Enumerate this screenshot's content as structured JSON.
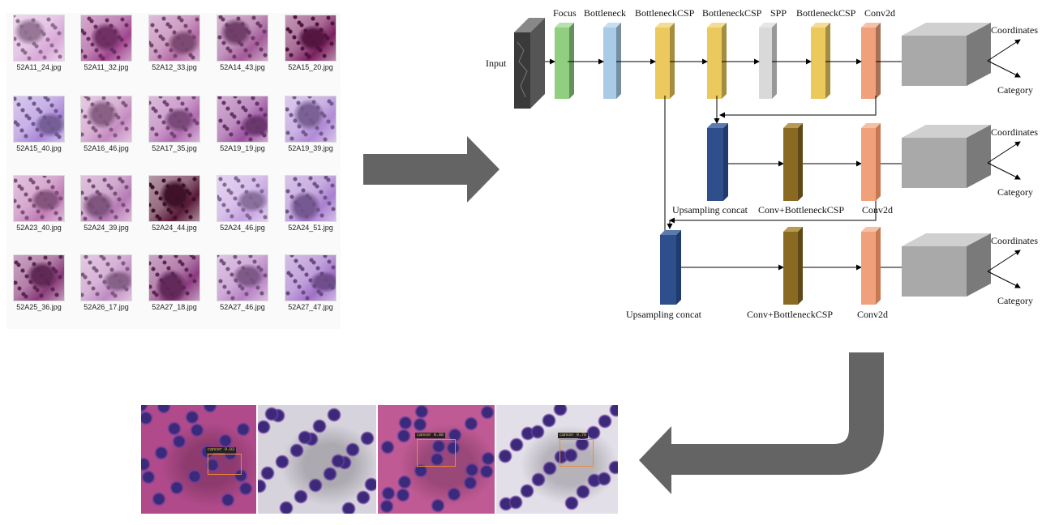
{
  "dataset": {
    "thumbnails": [
      {
        "file": "52A11_24.jpg",
        "shade": "#d9a8d8"
      },
      {
        "file": "52A11_32.jpg",
        "shade": "#a0448f"
      },
      {
        "file": "52A12_33.jpg",
        "shade": "#b36aa5"
      },
      {
        "file": "52A14_43.jpg",
        "shade": "#a35a99"
      },
      {
        "file": "52A15_20.jpg",
        "shade": "#7a1f5e"
      },
      {
        "file": "52A15_40.jpg",
        "shade": "#a986d8"
      },
      {
        "file": "52A16_46.jpg",
        "shade": "#c58ac0"
      },
      {
        "file": "52A17_35.jpg",
        "shade": "#b06ab0"
      },
      {
        "file": "52A19_19.jpg",
        "shade": "#9a4f9e"
      },
      {
        "file": "52A19_39.jpg",
        "shade": "#b08ad6"
      },
      {
        "file": "52A23_40.jpg",
        "shade": "#c07ab5"
      },
      {
        "file": "52A24_39.jpg",
        "shade": "#b77ab5"
      },
      {
        "file": "52A24_44.jpg",
        "shade": "#5a1a3a"
      },
      {
        "file": "52A24_46.jpg",
        "shade": "#c4a0e0"
      },
      {
        "file": "52A24_51.jpg",
        "shade": "#a97fd0"
      },
      {
        "file": "52A25_36.jpg",
        "shade": "#8a3a7a"
      },
      {
        "file": "52A26_17.jpg",
        "shade": "#c08ac2"
      },
      {
        "file": "52A27_18.jpg",
        "shade": "#8c3a80"
      },
      {
        "file": "52A27_46.jpg",
        "shade": "#b680c4"
      },
      {
        "file": "52A27_47.jpg",
        "shade": "#a070c8"
      }
    ]
  },
  "network": {
    "input_label": "Input",
    "backbone": [
      {
        "label": "Focus",
        "color": "#8fcf7f"
      },
      {
        "label": "Bottleneck",
        "color": "#a9cbe8"
      },
      {
        "label": "BottleneckCSP",
        "color": "#ecc95c"
      },
      {
        "label": "BottleneckCSP",
        "color": "#ecc95c"
      },
      {
        "label": "SPP",
        "color": "#d9d9d9"
      },
      {
        "label": "BottleneckCSP",
        "color": "#ecc95c"
      },
      {
        "label": "Conv2d",
        "color": "#f0a07a"
      }
    ],
    "branch2": {
      "up_label": "Upsampling concat",
      "mid_label": "Conv+BottleneckCSP",
      "conv_label": "Conv2d"
    },
    "branch3": {
      "up_label": "Upsampling concat",
      "mid_label": "Conv+BottleneckCSP",
      "conv_label": "Conv2d"
    },
    "head": {
      "out1": "Coordinates",
      "out2": "Category"
    },
    "colors": {
      "upsample": "#2e4f8c",
      "conv_csp": "#8a6a23",
      "head": "#a9a9a9",
      "arrow": "#646464"
    }
  },
  "results": {
    "panels": [
      {
        "bg": "#b04a8a",
        "label": "cancer 0.83"
      },
      {
        "bg": "#d7d3dc",
        "label": ""
      },
      {
        "bg": "#c05a95",
        "label": "cancer 0.88"
      },
      {
        "bg": "#e2dfe8",
        "label": "cancer 0.76"
      }
    ]
  }
}
